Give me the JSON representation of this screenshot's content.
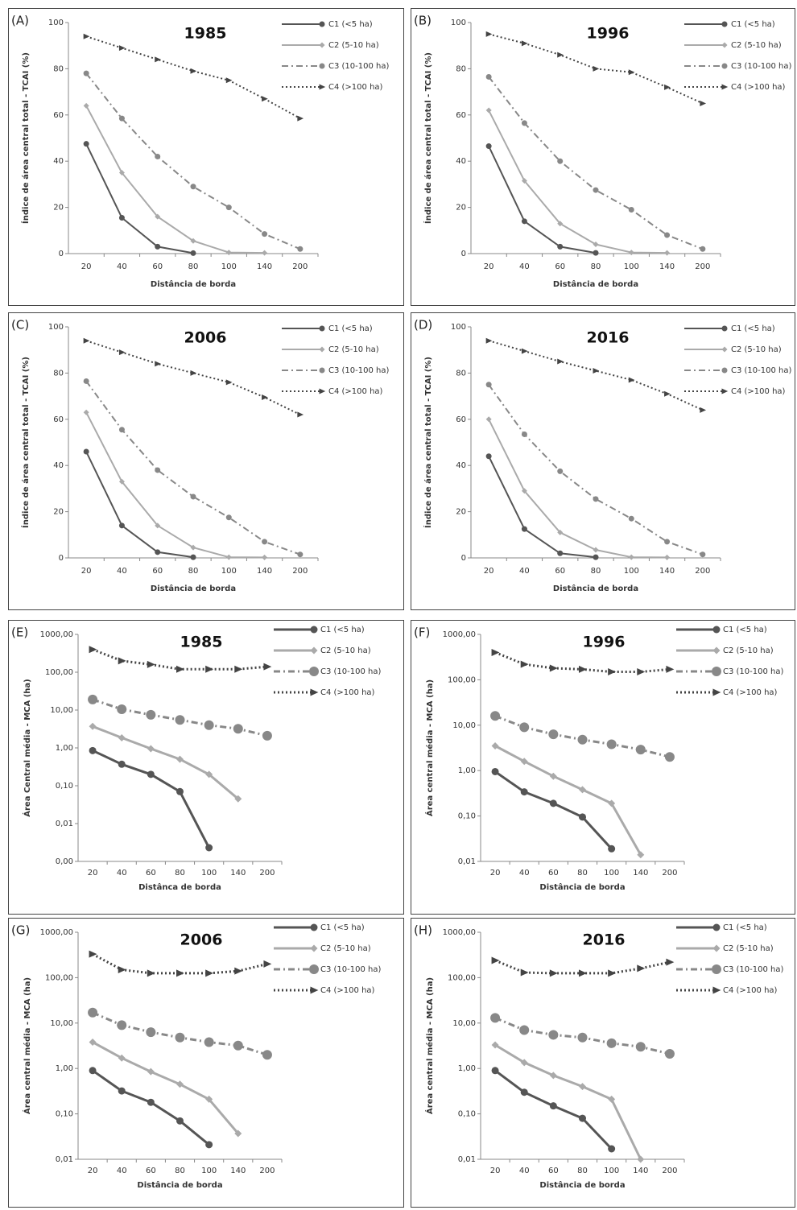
{
  "chart_data": [
    {
      "type": "line",
      "label": "(A)",
      "title": "1985",
      "ylabel": "Índice de área central total - TCAI (%)",
      "xlabel": "Distância de borda",
      "categories": [
        "20",
        "40",
        "60",
        "80",
        "100",
        "140",
        "200"
      ],
      "ylim": [
        0,
        100
      ],
      "yticks": [
        0,
        20,
        40,
        60,
        80,
        100
      ],
      "log_scale": false,
      "series": [
        {
          "name": "C1 (<5 ha)",
          "color": "#555555",
          "dash": "solid",
          "marker": "circle",
          "values": [
            47.5,
            15.5,
            3,
            0.2,
            null,
            null,
            null
          ]
        },
        {
          "name": "C2 (5-10 ha)",
          "color": "#aaaaaa",
          "dash": "solid",
          "marker": "diamond",
          "values": [
            64,
            35,
            16,
            5.5,
            0.5,
            0.3,
            null
          ]
        },
        {
          "name": "C3 (10-100 ha)",
          "color": "#888888",
          "dash": "dashdot",
          "marker": "circle",
          "values": [
            78,
            58.5,
            42,
            29,
            20,
            8.5,
            2
          ]
        },
        {
          "name": "C4 (>100 ha)",
          "color": "#444444",
          "dash": "dotted",
          "marker": "triangle",
          "values": [
            94,
            89,
            84,
            79,
            75,
            67,
            58.5
          ]
        }
      ]
    },
    {
      "type": "line",
      "label": "(B)",
      "title": "1996",
      "ylabel": "Índice de área central total - TCAI (%)",
      "xlabel": "Distância de borda",
      "categories": [
        "20",
        "40",
        "60",
        "80",
        "100",
        "140",
        "200"
      ],
      "ylim": [
        0,
        100
      ],
      "yticks": [
        0,
        20,
        40,
        60,
        80,
        100
      ],
      "log_scale": false,
      "series": [
        {
          "name": "C1 (<5 ha)",
          "color": "#555555",
          "dash": "solid",
          "marker": "circle",
          "values": [
            46.5,
            14,
            3,
            0.3,
            null,
            null,
            null
          ]
        },
        {
          "name": "C2 (5-10 ha)",
          "color": "#aaaaaa",
          "dash": "solid",
          "marker": "diamond",
          "values": [
            62,
            31.5,
            13,
            4,
            0.5,
            0.3,
            null
          ]
        },
        {
          "name": "C3 (10-100 ha)",
          "color": "#888888",
          "dash": "dashdot",
          "marker": "circle",
          "values": [
            76.5,
            56.5,
            40,
            27.5,
            19,
            8,
            2
          ]
        },
        {
          "name": "C4 (>100 ha)",
          "color": "#444444",
          "dash": "dotted",
          "marker": "triangle",
          "values": [
            95,
            91,
            86,
            80,
            78.5,
            72,
            65
          ]
        }
      ]
    },
    {
      "type": "line",
      "label": "(C)",
      "title": "2006",
      "ylabel": "Índice de área central total - TCAI (%)",
      "xlabel": "Distância de borda",
      "categories": [
        "20",
        "40",
        "60",
        "80",
        "100",
        "140",
        "200"
      ],
      "ylim": [
        0,
        100
      ],
      "yticks": [
        0,
        20,
        40,
        60,
        80,
        100
      ],
      "log_scale": false,
      "series": [
        {
          "name": "C1 (<5 ha)",
          "color": "#555555",
          "dash": "solid",
          "marker": "circle",
          "values": [
            46,
            14,
            2.5,
            0.3,
            null,
            null,
            null
          ]
        },
        {
          "name": "C2 (5-10 ha)",
          "color": "#aaaaaa",
          "dash": "solid",
          "marker": "diamond",
          "values": [
            63,
            33,
            14,
            4.5,
            0.3,
            0.2,
            null
          ]
        },
        {
          "name": "C3 (10-100 ha)",
          "color": "#888888",
          "dash": "dashdot",
          "marker": "circle",
          "values": [
            76.5,
            55.5,
            38,
            26.5,
            17.5,
            7,
            1.5
          ]
        },
        {
          "name": "C4 (>100 ha)",
          "color": "#444444",
          "dash": "dotted",
          "marker": "triangle",
          "values": [
            94,
            89,
            84,
            80,
            76,
            69.5,
            62
          ]
        }
      ]
    },
    {
      "type": "line",
      "label": "(D)",
      "title": "2016",
      "ylabel": "Índice de área central total - TCAI (%)",
      "xlabel": "Distância de borda",
      "categories": [
        "20",
        "40",
        "60",
        "80",
        "100",
        "140",
        "200"
      ],
      "ylim": [
        0,
        100
      ],
      "yticks": [
        0,
        20,
        40,
        60,
        80,
        100
      ],
      "log_scale": false,
      "series": [
        {
          "name": "C1 (<5 ha)",
          "color": "#555555",
          "dash": "solid",
          "marker": "circle",
          "values": [
            44,
            12.5,
            2,
            0.3,
            null,
            null,
            null
          ]
        },
        {
          "name": "C2 (5-10 ha)",
          "color": "#aaaaaa",
          "dash": "solid",
          "marker": "diamond",
          "values": [
            60,
            29,
            11,
            3.5,
            0.3,
            0.2,
            null
          ]
        },
        {
          "name": "C3 (10-100 ha)",
          "color": "#888888",
          "dash": "dashdot",
          "marker": "circle",
          "values": [
            75,
            53.5,
            37.5,
            25.5,
            17,
            7,
            1.5
          ]
        },
        {
          "name": "C4 (>100 ha)",
          "color": "#444444",
          "dash": "dotted",
          "marker": "triangle",
          "values": [
            94,
            89.5,
            85,
            81,
            77,
            71,
            64
          ]
        }
      ]
    },
    {
      "type": "line",
      "label": "(E)",
      "title": "1985",
      "ylabel": "Área Central média - MCA (ha)",
      "xlabel": "Distânca de borda",
      "categories": [
        "20",
        "40",
        "60",
        "80",
        "100",
        "140",
        "200"
      ],
      "ylim": [
        0.001,
        1000
      ],
      "yticks": [
        {
          "value": 0.001,
          "label": "0,00"
        },
        {
          "value": 0.01,
          "label": "0,01"
        },
        {
          "value": 0.1,
          "label": "0,10"
        },
        {
          "value": 1,
          "label": "1,00"
        },
        {
          "value": 10,
          "label": "10,00"
        },
        {
          "value": 100,
          "label": "100,00"
        },
        {
          "value": 1000,
          "label": "1000,00"
        }
      ],
      "log_scale": true,
      "series": [
        {
          "name": "C1 (<5 ha)",
          "color": "#555555",
          "dash": "solid",
          "marker": "circle",
          "values": [
            0.85,
            0.37,
            0.2,
            0.07,
            0.0023,
            null,
            null
          ]
        },
        {
          "name": "C2 (5-10 ha)",
          "color": "#aaaaaa",
          "dash": "solid",
          "marker": "diamond",
          "values": [
            3.7,
            1.85,
            0.95,
            0.5,
            0.2,
            0.045,
            null
          ]
        },
        {
          "name": "C3 (10-100 ha)",
          "color": "#888888",
          "dash": "dashdot",
          "marker": "circle",
          "values": [
            19,
            10.5,
            7.5,
            5.5,
            4,
            3.2,
            2.1
          ]
        },
        {
          "name": "C4 (>100 ha)",
          "color": "#444444",
          "dash": "dotted",
          "marker": "triangle",
          "values": [
            400,
            200,
            160,
            120,
            120,
            120,
            140
          ]
        }
      ]
    },
    {
      "type": "line",
      "label": "(F)",
      "title": "1996",
      "ylabel": "Área central média - MCA (ha)",
      "xlabel": "Distância de borda",
      "categories": [
        "20",
        "40",
        "60",
        "80",
        "100",
        "140",
        "200"
      ],
      "ylim": [
        0.01,
        1000
      ],
      "yticks": [
        {
          "value": 0.01,
          "label": "0,01"
        },
        {
          "value": 0.1,
          "label": "0,10"
        },
        {
          "value": 1,
          "label": "1,00"
        },
        {
          "value": 10,
          "label": "10,00"
        },
        {
          "value": 100,
          "label": "100,00"
        },
        {
          "value": 1000,
          "label": "1000,00"
        }
      ],
      "log_scale": true,
      "series": [
        {
          "name": "C1 (<5 ha)",
          "color": "#555555",
          "dash": "solid",
          "marker": "circle",
          "values": [
            0.95,
            0.34,
            0.19,
            0.095,
            0.019,
            null,
            null
          ]
        },
        {
          "name": "C2 (5-10 ha)",
          "color": "#aaaaaa",
          "dash": "solid",
          "marker": "diamond",
          "values": [
            3.5,
            1.6,
            0.75,
            0.38,
            0.19,
            0.014,
            null
          ]
        },
        {
          "name": "C3 (10-100 ha)",
          "color": "#888888",
          "dash": "dashdot",
          "marker": "circle",
          "values": [
            16,
            9,
            6.3,
            4.8,
            3.8,
            2.9,
            2
          ]
        },
        {
          "name": "C4 (>100 ha)",
          "color": "#444444",
          "dash": "dotted",
          "marker": "triangle",
          "values": [
            400,
            220,
            180,
            170,
            150,
            150,
            170
          ]
        }
      ]
    },
    {
      "type": "line",
      "label": "(G)",
      "title": "2006",
      "ylabel": "Área central média - MCA (ha)",
      "xlabel": "Distância de borda",
      "categories": [
        "20",
        "40",
        "60",
        "80",
        "100",
        "140",
        "200"
      ],
      "ylim": [
        0.01,
        1000
      ],
      "yticks": [
        {
          "value": 0.01,
          "label": "0,01"
        },
        {
          "value": 0.1,
          "label": "0,10"
        },
        {
          "value": 1,
          "label": "1,00"
        },
        {
          "value": 10,
          "label": "10,00"
        },
        {
          "value": 100,
          "label": "100,00"
        },
        {
          "value": 1000,
          "label": "1000,00"
        }
      ],
      "log_scale": true,
      "series": [
        {
          "name": "C1 (<5 ha)",
          "color": "#555555",
          "dash": "solid",
          "marker": "circle",
          "values": [
            0.9,
            0.32,
            0.18,
            0.07,
            0.021,
            null,
            null
          ]
        },
        {
          "name": "C2 (5-10 ha)",
          "color": "#aaaaaa",
          "dash": "solid",
          "marker": "diamond",
          "values": [
            3.8,
            1.7,
            0.85,
            0.45,
            0.21,
            0.037,
            null
          ]
        },
        {
          "name": "C3 (10-100 ha)",
          "color": "#888888",
          "dash": "dashdot",
          "marker": "circle",
          "values": [
            17,
            9,
            6.3,
            4.8,
            3.8,
            3.2,
            2
          ]
        },
        {
          "name": "C4 (>100 ha)",
          "color": "#444444",
          "dash": "dotted",
          "marker": "triangle",
          "values": [
            330,
            150,
            125,
            125,
            125,
            140,
            200
          ]
        }
      ]
    },
    {
      "type": "line",
      "label": "(H)",
      "title": "2016",
      "ylabel": "Área central média - MCA (ha)",
      "xlabel": "Distância de borda",
      "categories": [
        "20",
        "40",
        "60",
        "80",
        "100",
        "140",
        "200"
      ],
      "ylim": [
        0.01,
        1000
      ],
      "yticks": [
        {
          "value": 0.01,
          "label": "0,01"
        },
        {
          "value": 0.1,
          "label": "0,10"
        },
        {
          "value": 1,
          "label": "1,00"
        },
        {
          "value": 10,
          "label": "10,00"
        },
        {
          "value": 100,
          "label": "100,00"
        },
        {
          "value": 1000,
          "label": "1000,00"
        }
      ],
      "log_scale": true,
      "series": [
        {
          "name": "C1 (<5 ha)",
          "color": "#555555",
          "dash": "solid",
          "marker": "circle",
          "values": [
            0.9,
            0.3,
            0.15,
            0.08,
            0.017,
            null,
            null
          ]
        },
        {
          "name": "C2 (5-10 ha)",
          "color": "#aaaaaa",
          "dash": "solid",
          "marker": "diamond",
          "values": [
            3.3,
            1.35,
            0.7,
            0.4,
            0.21,
            0.01,
            null
          ]
        },
        {
          "name": "C3 (10-100 ha)",
          "color": "#888888",
          "dash": "dashdot",
          "marker": "circle",
          "values": [
            13,
            7,
            5.5,
            4.8,
            3.6,
            3,
            2.1
          ]
        },
        {
          "name": "C4 (>100 ha)",
          "color": "#444444",
          "dash": "dotted",
          "marker": "triangle",
          "values": [
            240,
            130,
            125,
            125,
            125,
            160,
            220
          ]
        }
      ]
    }
  ]
}
